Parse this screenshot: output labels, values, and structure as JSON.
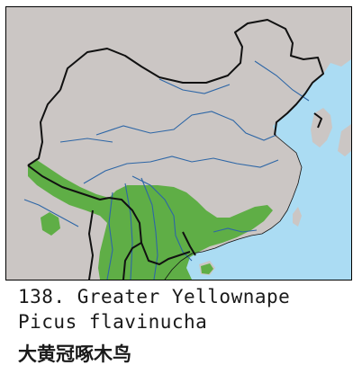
{
  "map": {
    "colors": {
      "land": "#cbc6c4",
      "sea": "#abdcf3",
      "range": "#5fae46",
      "river": "#2d66a6",
      "border": "#111111"
    }
  },
  "caption": {
    "number_and_name": "138. Greater Yellownape",
    "latin_name": "Picus flavinucha",
    "chinese_name": "大黄冠啄木鸟"
  }
}
